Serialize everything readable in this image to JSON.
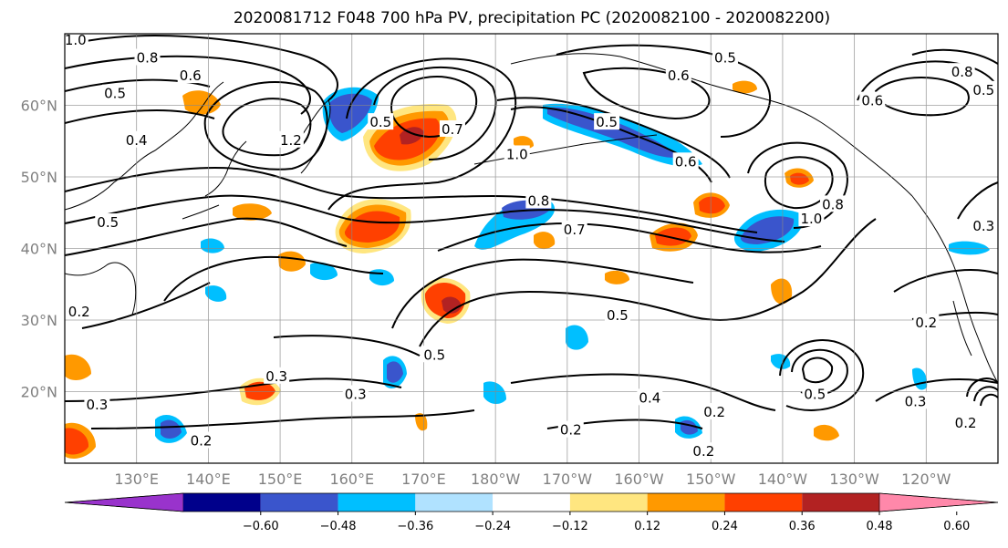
{
  "title": "2020081712 F048 700 hPa PV, precipitation PC (2020082100 - 2020082200)",
  "map": {
    "lon_range": [
      120,
      250
    ],
    "lat_range": [
      10,
      70
    ],
    "grid": true,
    "lon_labels": [
      {
        "lon": 130,
        "label": "130°E"
      },
      {
        "lon": 140,
        "label": "140°E"
      },
      {
        "lon": 150,
        "label": "150°E"
      },
      {
        "lon": 160,
        "label": "160°E"
      },
      {
        "lon": 170,
        "label": "170°E"
      },
      {
        "lon": 180,
        "label": "180°W"
      },
      {
        "lon": 190,
        "label": "170°W"
      },
      {
        "lon": 200,
        "label": "160°W"
      },
      {
        "lon": 210,
        "label": "150°W"
      },
      {
        "lon": 220,
        "label": "140°W"
      },
      {
        "lon": 230,
        "label": "130°W"
      },
      {
        "lon": 240,
        "label": "120°W"
      }
    ],
    "lat_labels": [
      {
        "lat": 20,
        "label": "20°N"
      },
      {
        "lat": 30,
        "label": "30°N"
      },
      {
        "lat": 40,
        "label": "40°N"
      },
      {
        "lat": 50,
        "label": "50°N"
      },
      {
        "lat": 60,
        "label": "60°N"
      }
    ],
    "contour_labels": [
      {
        "lon": 121.5,
        "lat": 69.0,
        "text": "1.0"
      },
      {
        "lon": 131.5,
        "lat": 66.5,
        "text": "0.8"
      },
      {
        "lon": 137.5,
        "lat": 64.0,
        "text": "0.6"
      },
      {
        "lon": 127.0,
        "lat": 61.5,
        "text": "0.5"
      },
      {
        "lon": 130.0,
        "lat": 55.0,
        "text": "0.4"
      },
      {
        "lon": 151.5,
        "lat": 55.0,
        "text": "1.2"
      },
      {
        "lon": 164.0,
        "lat": 57.5,
        "text": "0.5"
      },
      {
        "lon": 174.0,
        "lat": 56.5,
        "text": "0.7"
      },
      {
        "lon": 183.0,
        "lat": 53.0,
        "text": "1.0"
      },
      {
        "lon": 195.5,
        "lat": 57.5,
        "text": "0.5"
      },
      {
        "lon": 212.0,
        "lat": 66.5,
        "text": "0.5"
      },
      {
        "lon": 205.5,
        "lat": 64.0,
        "text": "0.6"
      },
      {
        "lon": 206.5,
        "lat": 52.0,
        "text": "0.6"
      },
      {
        "lon": 186.0,
        "lat": 46.5,
        "text": "0.8"
      },
      {
        "lon": 191.0,
        "lat": 42.5,
        "text": "0.7"
      },
      {
        "lon": 227.0,
        "lat": 46.0,
        "text": "0.8"
      },
      {
        "lon": 224.0,
        "lat": 44.0,
        "text": "1.0"
      },
      {
        "lon": 232.5,
        "lat": 60.5,
        "text": "0.6"
      },
      {
        "lon": 245.0,
        "lat": 64.5,
        "text": "0.8"
      },
      {
        "lon": 248.0,
        "lat": 62.0,
        "text": "0.5"
      },
      {
        "lon": 248.0,
        "lat": 43.0,
        "text": "0.3"
      },
      {
        "lon": 126.0,
        "lat": 43.5,
        "text": "0.5"
      },
      {
        "lon": 122.0,
        "lat": 31.0,
        "text": "0.2"
      },
      {
        "lon": 171.5,
        "lat": 25.0,
        "text": "0.5"
      },
      {
        "lon": 197.0,
        "lat": 30.5,
        "text": "0.5"
      },
      {
        "lon": 149.5,
        "lat": 22.0,
        "text": "0.3"
      },
      {
        "lon": 160.5,
        "lat": 19.5,
        "text": "0.3"
      },
      {
        "lon": 124.5,
        "lat": 18.0,
        "text": "0.3"
      },
      {
        "lon": 139.0,
        "lat": 13.0,
        "text": "0.2"
      },
      {
        "lon": 190.5,
        "lat": 14.5,
        "text": "0.2"
      },
      {
        "lon": 201.5,
        "lat": 19.0,
        "text": "0.4"
      },
      {
        "lon": 210.5,
        "lat": 17.0,
        "text": "0.2"
      },
      {
        "lon": 209.0,
        "lat": 11.5,
        "text": "0.2"
      },
      {
        "lon": 224.5,
        "lat": 19.5,
        "text": "0.5"
      },
      {
        "lon": 240.0,
        "lat": 29.5,
        "text": "0.2"
      },
      {
        "lon": 238.5,
        "lat": 18.5,
        "text": "0.3"
      },
      {
        "lon": 245.5,
        "lat": 15.5,
        "text": "0.2"
      }
    ]
  },
  "colorbar": {
    "ticks": [
      "−0.60",
      "−0.48",
      "−0.36",
      "−0.24",
      "−0.12",
      "0.12",
      "0.24",
      "0.36",
      "0.48",
      "0.60"
    ],
    "bins": [
      {
        "color": "#9933cc"
      },
      {
        "color": "#00008b"
      },
      {
        "color": "#3a55cc"
      },
      {
        "color": "#00bfff"
      },
      {
        "color": "#b0e2ff"
      },
      {
        "color": "#ffffff"
      },
      {
        "color": "#ffe680"
      },
      {
        "color": "#ff9900"
      },
      {
        "color": "#ff4000"
      },
      {
        "color": "#b22222"
      },
      {
        "color": "#ff88aa"
      }
    ]
  }
}
